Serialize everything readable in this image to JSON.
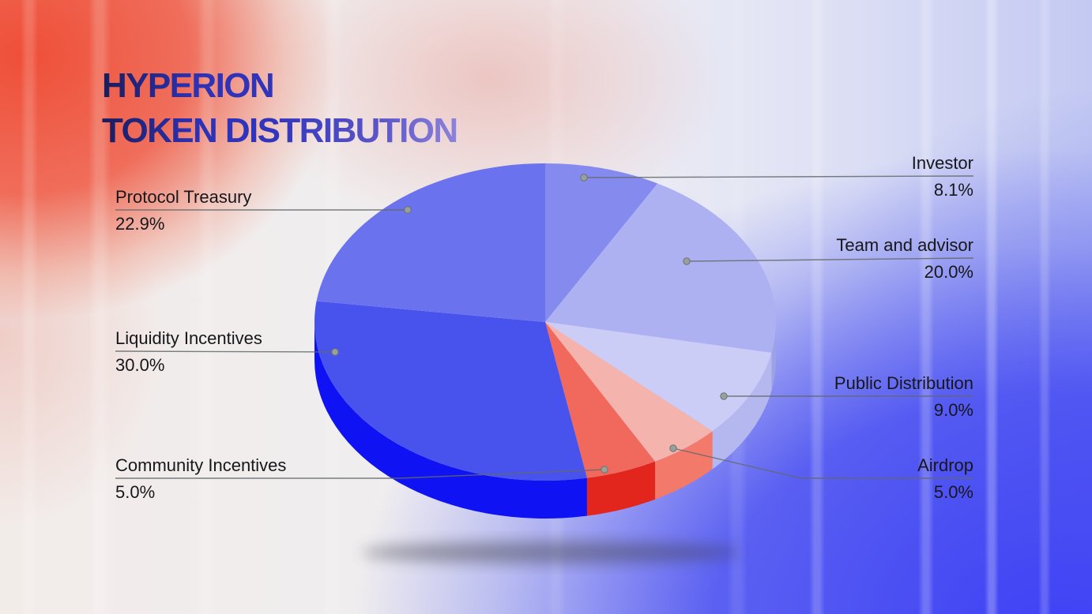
{
  "title": {
    "line1": "HYPERION",
    "line2": "TOKEN DISTRIBUTION"
  },
  "chart_data": {
    "type": "pie",
    "title": "HYPERION TOKEN DISTRIBUTION",
    "style": "3d-pie",
    "start_angle_deg": 0,
    "direction": "clockwise",
    "legend_position": "callout-labels",
    "segments": [
      {
        "label": "Investor",
        "value": 8.1,
        "display": "8.1%",
        "color_top": "#858bee",
        "color_side": "#9da2e6",
        "label_side": "right"
      },
      {
        "label": "Team and advisor",
        "value": 20.0,
        "display": "20.0%",
        "color_top": "#adb1f2",
        "color_side": "#9da2e6",
        "label_side": "right"
      },
      {
        "label": "Public Distribution",
        "value": 9.0,
        "display": "9.0%",
        "color_top": "#cbcdf7",
        "color_side": "#b5b8ef",
        "label_side": "right"
      },
      {
        "label": "Airdrop",
        "value": 5.0,
        "display": "5.0%",
        "color_top": "#f5b3ae",
        "color_side": "#f3796a",
        "label_side": "right"
      },
      {
        "label": "Community Incentives",
        "value": 5.0,
        "display": "5.0%",
        "color_top": "#f1695c",
        "color_side": "#e3261d",
        "label_side": "left"
      },
      {
        "label": "Liquidity Incentives",
        "value": 30.0,
        "display": "30.0%",
        "color_top": "#4753ec",
        "color_side": "#0f12f3",
        "label_side": "left"
      },
      {
        "label": "Protocol Treasury",
        "value": 22.9,
        "display": "22.9%",
        "color_top": "#6b72ee",
        "color_side": "#5a60d8",
        "label_side": "left"
      }
    ],
    "colors": {
      "background_left_accent": "#ef4f38",
      "background_right_accent": "#4348f2",
      "leader_line": "#63686b",
      "label_text": "#17171b"
    }
  }
}
